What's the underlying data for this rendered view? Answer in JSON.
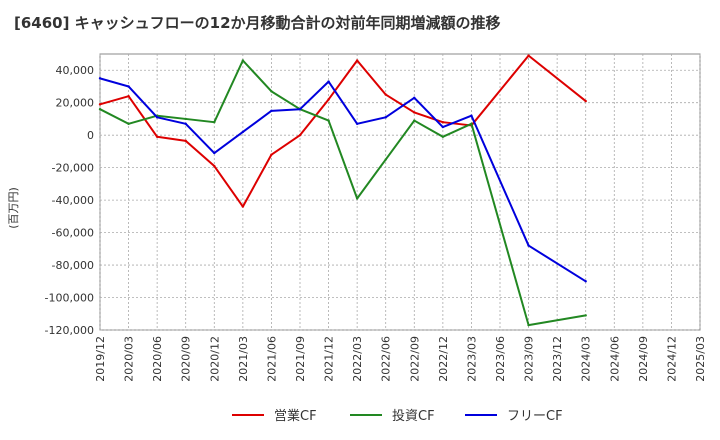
{
  "chart_data": {
    "type": "line",
    "title": "[6460]  キャッシュフローの12か月移動合計の対前年同期増減額の推移",
    "ylabel": "(百万円)",
    "xlabel": "",
    "ylim": [
      -120000,
      50000
    ],
    "yticks": [
      40000,
      20000,
      0,
      -20000,
      -40000,
      -60000,
      -80000,
      -100000,
      -120000
    ],
    "ytick_labels": [
      "40,000",
      "20,000",
      "0",
      "-20,000",
      "-40,000",
      "-60,000",
      "-80,000",
      "-100,000",
      "-120,000"
    ],
    "categories": [
      "2019/12",
      "2020/03",
      "2020/06",
      "2020/09",
      "2020/12",
      "2021/03",
      "2021/06",
      "2021/09",
      "2021/12",
      "2022/03",
      "2022/06",
      "2022/09",
      "2022/12",
      "2023/03",
      "2023/06",
      "2023/09",
      "2023/12",
      "2024/03",
      "2024/06",
      "2024/09",
      "2024/12",
      "2025/03"
    ],
    "grid": true,
    "legend_position": "bottom",
    "series": [
      {
        "name": "営業CF",
        "color": "#dd0000",
        "values": [
          19000,
          24000,
          -1000,
          -3500,
          -19000,
          -44000,
          -12000,
          0,
          22000,
          46000,
          25000,
          14000,
          8000,
          6000,
          null,
          49000,
          null,
          21000,
          null,
          null,
          null,
          null
        ]
      },
      {
        "name": "投資CF",
        "color": "#228822",
        "values": [
          16000,
          7000,
          12000,
          10000,
          8000,
          46000,
          27000,
          16000,
          9000,
          -39000,
          -15000,
          9000,
          -1000,
          7000,
          null,
          -117000,
          null,
          -111000,
          null,
          null,
          null,
          null
        ]
      },
      {
        "name": "フリーCF",
        "color": "#0000dd",
        "values": [
          35000,
          30000,
          11000,
          7000,
          -11000,
          2000,
          15000,
          16000,
          33000,
          7000,
          11000,
          23000,
          5000,
          12000,
          null,
          -68000,
          null,
          -90000,
          null,
          null,
          null,
          null
        ]
      }
    ]
  }
}
